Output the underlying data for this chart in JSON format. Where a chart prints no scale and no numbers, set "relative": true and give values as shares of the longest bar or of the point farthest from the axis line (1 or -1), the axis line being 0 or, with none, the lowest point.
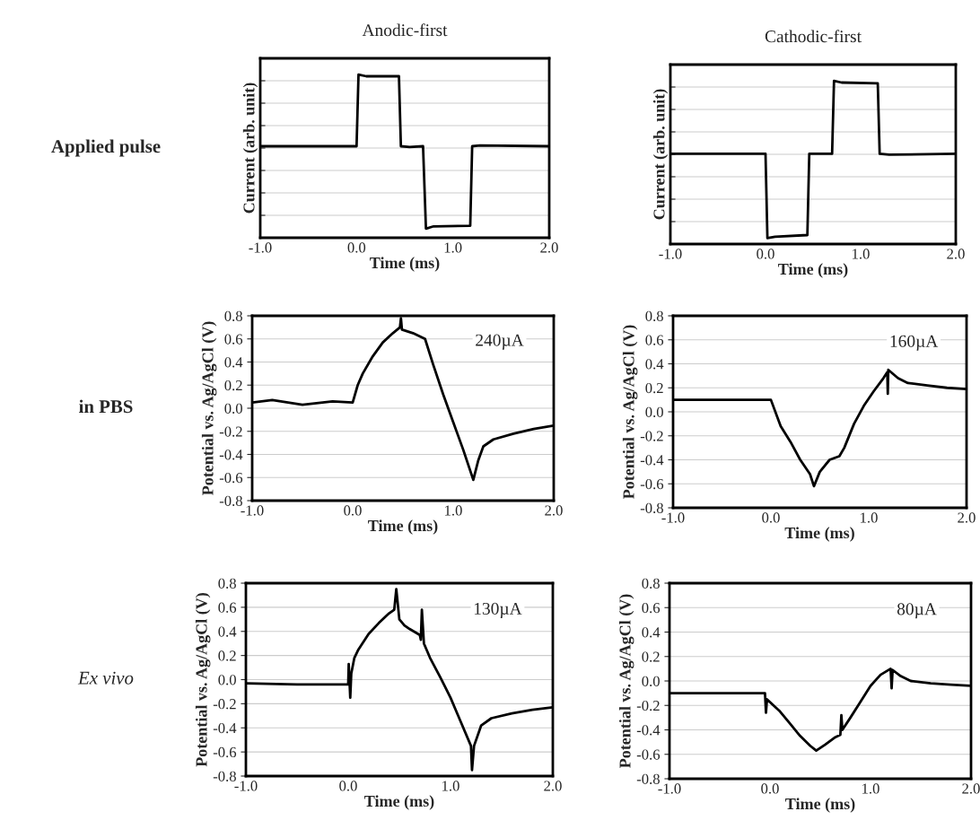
{
  "chart_data": [
    {
      "type": "line",
      "title": "Anodic-first",
      "xlabel": "Time (ms)",
      "ylabel": "Current (arb. unit)",
      "relative": true,
      "tick_labels": "x",
      "grid": "y",
      "annotations": [
        "Applied pulse"
      ],
      "xlim": [
        -1,
        2
      ],
      "xticks": [
        {
          "value": -1,
          "label": "-1.0"
        },
        {
          "value": 0,
          "label": "0.0"
        },
        {
          "value": 1,
          "label": "1.0"
        },
        {
          "value": 2,
          "label": "2.0"
        }
      ],
      "series": [
        {
          "color": "#000000",
          "x": [
            -1,
            0,
            0.02,
            0.1,
            0.44,
            0.46,
            0.55,
            0.69,
            0.72,
            0.8,
            1.18,
            1.2,
            1.28,
            2.0
          ],
          "values": [
            0.561,
            0.561,
            1.0,
            0.99,
            0.99,
            0.561,
            0.556,
            0.561,
            0.056,
            0.07,
            0.074,
            0.561,
            0.566,
            0.561
          ]
        }
      ]
    },
    {
      "type": "line",
      "title": "Cathodic-first",
      "xlabel": "Time (ms)",
      "ylabel": "Current (arb. unit)",
      "relative": true,
      "tick_labels": "x",
      "grid": "y",
      "xlim": [
        -1,
        2
      ],
      "xticks": [
        {
          "value": -1,
          "label": "-1.0"
        },
        {
          "value": 0,
          "label": "0.0"
        },
        {
          "value": 1,
          "label": "1.0"
        },
        {
          "value": 2,
          "label": "2.0"
        }
      ],
      "series": [
        {
          "color": "#000000",
          "x": [
            -1,
            0,
            0.02,
            0.1,
            0.44,
            0.46,
            0.7,
            0.72,
            0.8,
            1.18,
            1.2,
            1.3,
            2.0
          ],
          "values": [
            0.553,
            0.553,
            0.036,
            0.045,
            0.055,
            0.553,
            0.553,
            1.0,
            0.99,
            0.985,
            0.553,
            0.548,
            0.553
          ]
        }
      ]
    },
    {
      "type": "line",
      "xlabel": "Time (ms)",
      "ylabel": "Potential vs. Ag/AgCl (V)",
      "grid": "y",
      "annotations": [
        "in PBS",
        "240µA"
      ],
      "xlim": [
        -1,
        2
      ],
      "xticks": [
        {
          "value": -1,
          "label": "-1.0"
        },
        {
          "value": 0,
          "label": "0.0"
        },
        {
          "value": 1,
          "label": "1.0"
        },
        {
          "value": 2,
          "label": "2.0"
        }
      ],
      "ylim": [
        -0.8,
        0.8
      ],
      "yticks": [
        {
          "value": -0.8,
          "label": "-0.8"
        },
        {
          "value": -0.6,
          "label": "-0.6"
        },
        {
          "value": -0.4,
          "label": "-0.4"
        },
        {
          "value": -0.2,
          "label": "-0.2"
        },
        {
          "value": 0,
          "label": "0.0"
        },
        {
          "value": 0.2,
          "label": "0.2"
        },
        {
          "value": 0.4,
          "label": "0.4"
        },
        {
          "value": 0.6,
          "label": "0.6"
        },
        {
          "value": 0.8,
          "label": "0.8"
        }
      ],
      "series": [
        {
          "color": "#000000",
          "x": [
            -1,
            -0.8,
            -0.5,
            -0.2,
            0,
            0.05,
            0.1,
            0.2,
            0.3,
            0.4,
            0.47,
            0.48,
            0.49,
            0.6,
            0.72,
            0.8,
            0.9,
            1.0,
            1.1,
            1.2,
            1.25,
            1.3,
            1.4,
            1.6,
            1.8,
            2.0
          ],
          "values": [
            0.05,
            0.07,
            0.03,
            0.06,
            0.05,
            0.2,
            0.3,
            0.45,
            0.57,
            0.65,
            0.7,
            0.78,
            0.68,
            0.65,
            0.6,
            0.38,
            0.12,
            -0.12,
            -0.36,
            -0.62,
            -0.45,
            -0.33,
            -0.27,
            -0.22,
            -0.18,
            -0.15
          ]
        }
      ]
    },
    {
      "type": "line",
      "xlabel": "Time (ms)",
      "ylabel": "Potential vs. Ag/AgCl (V)",
      "grid": "y",
      "annotations": [
        "160µA"
      ],
      "xlim": [
        -1,
        2
      ],
      "xticks": [
        {
          "value": -1,
          "label": "-1.0"
        },
        {
          "value": 0,
          "label": "0.0"
        },
        {
          "value": 1,
          "label": "1.0"
        },
        {
          "value": 2,
          "label": "2.0"
        }
      ],
      "ylim": [
        -0.8,
        0.8
      ],
      "yticks": [
        {
          "value": -0.8,
          "label": "-0.8"
        },
        {
          "value": -0.6,
          "label": "-0.6"
        },
        {
          "value": -0.4,
          "label": "-0.4"
        },
        {
          "value": -0.2,
          "label": "-0.2"
        },
        {
          "value": 0,
          "label": "0.0"
        },
        {
          "value": 0.2,
          "label": "0.2"
        },
        {
          "value": 0.4,
          "label": "0.4"
        },
        {
          "value": 0.6,
          "label": "0.6"
        },
        {
          "value": 0.8,
          "label": "0.8"
        }
      ],
      "series": [
        {
          "color": "#000000",
          "x": [
            -1,
            -0.5,
            0,
            0.1,
            0.2,
            0.3,
            0.4,
            0.44,
            0.5,
            0.6,
            0.7,
            0.75,
            0.85,
            0.95,
            1.05,
            1.15,
            1.19,
            1.195,
            1.2,
            1.3,
            1.4,
            1.6,
            1.8,
            2.0
          ],
          "values": [
            0.1,
            0.1,
            0.1,
            -0.12,
            -0.25,
            -0.4,
            -0.52,
            -0.62,
            -0.5,
            -0.4,
            -0.37,
            -0.3,
            -0.1,
            0.05,
            0.17,
            0.28,
            0.33,
            0.15,
            0.35,
            0.28,
            0.24,
            0.22,
            0.2,
            0.19
          ]
        }
      ]
    },
    {
      "type": "line",
      "xlabel": "Time (ms)",
      "ylabel": "Potential vs. Ag/AgCl (V)",
      "grid": "y",
      "annotations": [
        "Ex vivo",
        "130µA"
      ],
      "xlim": [
        -1,
        2
      ],
      "xticks": [
        {
          "value": -1,
          "label": "-1.0"
        },
        {
          "value": 0,
          "label": "0.0"
        },
        {
          "value": 1,
          "label": "1.0"
        },
        {
          "value": 2,
          "label": "2.0"
        }
      ],
      "ylim": [
        -0.8,
        0.8
      ],
      "yticks": [
        {
          "value": -0.8,
          "label": "-0.8"
        },
        {
          "value": -0.6,
          "label": "-0.6"
        },
        {
          "value": -0.4,
          "label": "-0.4"
        },
        {
          "value": -0.2,
          "label": "-0.2"
        },
        {
          "value": 0,
          "label": "0.0"
        },
        {
          "value": 0.2,
          "label": "0.2"
        },
        {
          "value": 0.4,
          "label": "0.4"
        },
        {
          "value": 0.6,
          "label": "0.6"
        },
        {
          "value": 0.8,
          "label": "0.8"
        }
      ],
      "series": [
        {
          "color": "#000000",
          "x": [
            -1,
            -0.5,
            0,
            0.005,
            0.02,
            0.03,
            0.06,
            0.1,
            0.2,
            0.3,
            0.4,
            0.45,
            0.47,
            0.5,
            0.55,
            0.6,
            0.7,
            0.71,
            0.72,
            0.74,
            0.8,
            0.9,
            1.0,
            1.1,
            1.2,
            1.21,
            1.23,
            1.3,
            1.4,
            1.6,
            1.8,
            2.0
          ],
          "values": [
            -0.03,
            -0.04,
            -0.04,
            0.13,
            -0.15,
            0.05,
            0.18,
            0.25,
            0.38,
            0.47,
            0.55,
            0.58,
            0.75,
            0.5,
            0.45,
            0.42,
            0.37,
            0.33,
            0.58,
            0.3,
            0.18,
            0.02,
            -0.15,
            -0.35,
            -0.55,
            -0.75,
            -0.55,
            -0.38,
            -0.32,
            -0.28,
            -0.25,
            -0.23
          ]
        }
      ]
    },
    {
      "type": "line",
      "xlabel": "Time (ms)",
      "ylabel": "Potential vs. Ag/AgCl (V)",
      "grid": "y",
      "annotations": [
        "80µA"
      ],
      "xlim": [
        -1,
        2
      ],
      "xticks": [
        {
          "value": -1,
          "label": "-1.0"
        },
        {
          "value": 0,
          "label": "0.0"
        },
        {
          "value": 1,
          "label": "1.0"
        },
        {
          "value": 2,
          "label": "2.0"
        }
      ],
      "ylim": [
        -0.8,
        0.8
      ],
      "yticks": [
        {
          "value": -0.8,
          "label": "-0.8"
        },
        {
          "value": -0.6,
          "label": "-0.6"
        },
        {
          "value": -0.4,
          "label": "-0.4"
        },
        {
          "value": -0.2,
          "label": "-0.2"
        },
        {
          "value": 0,
          "label": "0.0"
        },
        {
          "value": 0.2,
          "label": "0.2"
        },
        {
          "value": 0.4,
          "label": "0.4"
        },
        {
          "value": 0.6,
          "label": "0.6"
        },
        {
          "value": 0.8,
          "label": "0.8"
        }
      ],
      "series": [
        {
          "color": "#000000",
          "x": [
            -1,
            -0.5,
            -0.05,
            -0.04,
            -0.03,
            0.1,
            0.2,
            0.3,
            0.4,
            0.46,
            0.55,
            0.65,
            0.7,
            0.71,
            0.72,
            0.8,
            0.9,
            1.0,
            1.1,
            1.2,
            1.21,
            1.22,
            1.3,
            1.4,
            1.6,
            1.8,
            2.0
          ],
          "values": [
            -0.1,
            -0.1,
            -0.1,
            -0.26,
            -0.15,
            -0.25,
            -0.35,
            -0.45,
            -0.53,
            -0.57,
            -0.52,
            -0.46,
            -0.44,
            -0.28,
            -0.4,
            -0.3,
            -0.17,
            -0.04,
            0.05,
            0.1,
            -0.06,
            0.09,
            0.04,
            0.0,
            -0.02,
            -0.03,
            -0.04
          ]
        }
      ]
    }
  ]
}
